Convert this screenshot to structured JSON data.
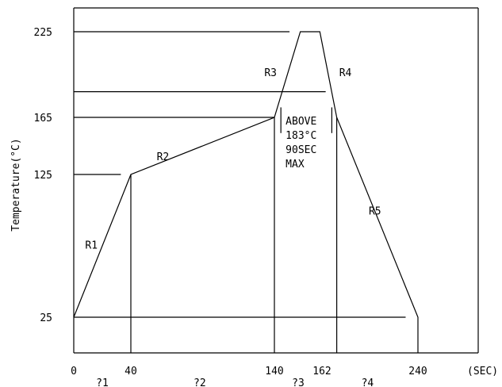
{
  "chart_data": {
    "type": "line",
    "ylabel": "Temperature(°C)",
    "xunit": "(SEC)",
    "x_ticks": [
      0,
      40,
      140,
      162,
      240
    ],
    "y_ticks": [
      25,
      125,
      165,
      225
    ],
    "zone_labels": [
      {
        "text": "?1",
        "x": 20
      },
      {
        "text": "?2",
        "x": 88
      },
      {
        "text": "?3",
        "x": 151
      },
      {
        "text": "?4",
        "x": 199
      }
    ],
    "series": [
      {
        "x": [
          0,
          40,
          140,
          152,
          161,
          174,
          240,
          240
        ],
        "y": [
          25,
          125,
          165,
          225,
          225,
          165,
          25,
          0
        ]
      }
    ],
    "guides": {
      "vertical": [
        {
          "x": 40,
          "y0": 0,
          "y1": 125
        },
        {
          "x": 140,
          "y0": 0,
          "y1": 165
        },
        {
          "x": 174,
          "y0": 0,
          "y1": 165
        }
      ],
      "horizontal": [
        {
          "y": 225,
          "x0": 0,
          "x1": 147
        },
        {
          "y": 183,
          "x0": 0,
          "x1": 165
        },
        {
          "y": 165,
          "x0": 0,
          "x1": 140
        },
        {
          "y": 125,
          "x0": 0,
          "x1": 33
        },
        {
          "y": 25,
          "x0": 0,
          "x1": 230
        }
      ],
      "marker_ticks": [
        {
          "x": 143,
          "y0": 154,
          "y1": 172
        },
        {
          "x": 170,
          "y0": 154,
          "y1": 172
        }
      ]
    },
    "segment_labels": [
      {
        "text": "R1",
        "x": 8,
        "y": 73
      },
      {
        "text": "R2",
        "x": 58,
        "y": 135
      },
      {
        "text": "R3",
        "x": 133,
        "y": 194
      },
      {
        "text": "R4",
        "x": 176,
        "y": 194
      },
      {
        "text": "R5",
        "x": 200,
        "y": 97
      }
    ],
    "annotation": {
      "lines": [
        "ABOVE",
        "183°C",
        "90SEC",
        "MAX"
      ],
      "x": 143,
      "y": 160
    },
    "xlim": [
      0,
      240
    ],
    "ylim": [
      0,
      240
    ],
    "grid": false
  }
}
